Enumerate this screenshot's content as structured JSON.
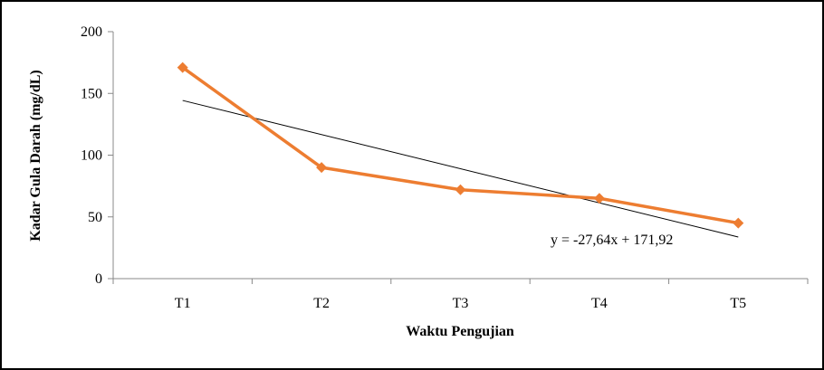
{
  "chart_data": {
    "type": "line",
    "categories": [
      "T1",
      "T2",
      "T3",
      "T4",
      "T5"
    ],
    "series": [
      {
        "name": "",
        "values": [
          171,
          90,
          72,
          65,
          45
        ],
        "color": "#ED7D31"
      }
    ],
    "trendline": {
      "slope": -27.64,
      "intercept": 171.92,
      "label": "y = -27,64x + 171,92",
      "color": "#000000"
    },
    "title": "",
    "xlabel": "Waktu Pengujian",
    "ylabel": "Kadar Gula Darah (mg/dL)",
    "ylim": [
      0,
      200
    ],
    "yticks": [
      "0",
      "50",
      "100",
      "150",
      "200"
    ],
    "grid": false,
    "legend": "none"
  }
}
